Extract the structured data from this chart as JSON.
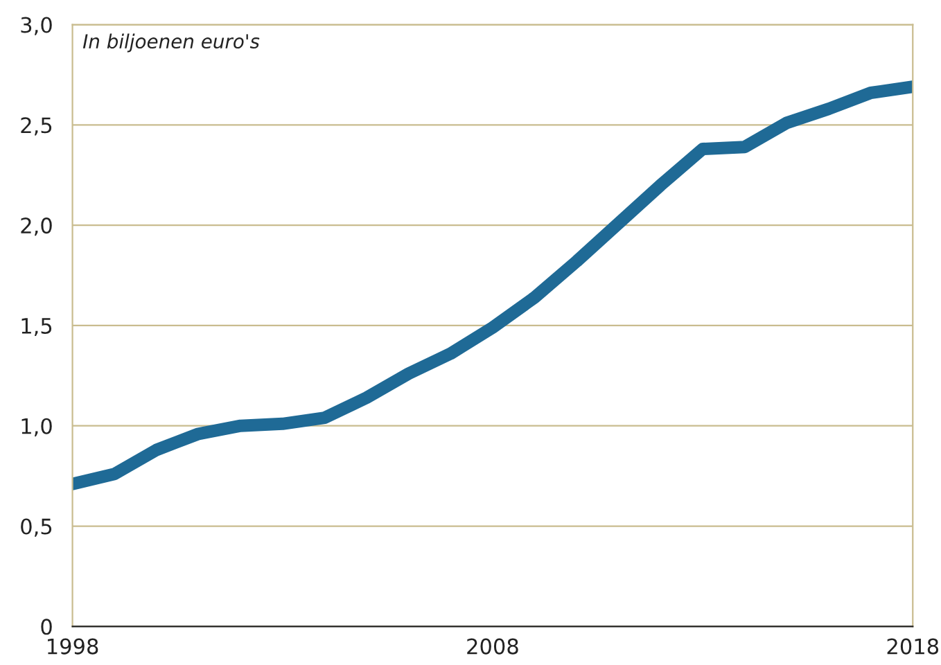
{
  "chart_data": {
    "type": "line",
    "annotations": [
      "In biljoenen euro's"
    ],
    "x": [
      1998,
      1999,
      2000,
      2001,
      2002,
      2003,
      2004,
      2005,
      2006,
      2007,
      2008,
      2009,
      2010,
      2011,
      2012,
      2013,
      2014,
      2015,
      2016,
      2017,
      2018
    ],
    "series": [
      {
        "color": "#1f6a96",
        "values": [
          0.71,
          0.76,
          0.88,
          0.96,
          1.0,
          1.01,
          1.04,
          1.14,
          1.26,
          1.36,
          1.49,
          1.64,
          1.82,
          2.01,
          2.2,
          2.38,
          2.39,
          2.51,
          2.58,
          2.66,
          2.69
        ]
      }
    ],
    "xlim": [
      1998,
      2018
    ],
    "xticks": [
      1998,
      2008,
      2018
    ],
    "ylim": [
      0,
      3
    ],
    "yticks": [
      0,
      {
        "value": 0.5,
        "label": "0,5"
      },
      {
        "value": 1,
        "label": "1,0"
      },
      {
        "value": 1.5,
        "label": "1,5"
      },
      {
        "value": 2,
        "label": "2,0"
      },
      {
        "value": 2.5,
        "label": "2,5"
      },
      {
        "value": 3,
        "label": "3,0"
      }
    ],
    "grid": "y",
    "line_style": "solid",
    "marker": "none"
  }
}
